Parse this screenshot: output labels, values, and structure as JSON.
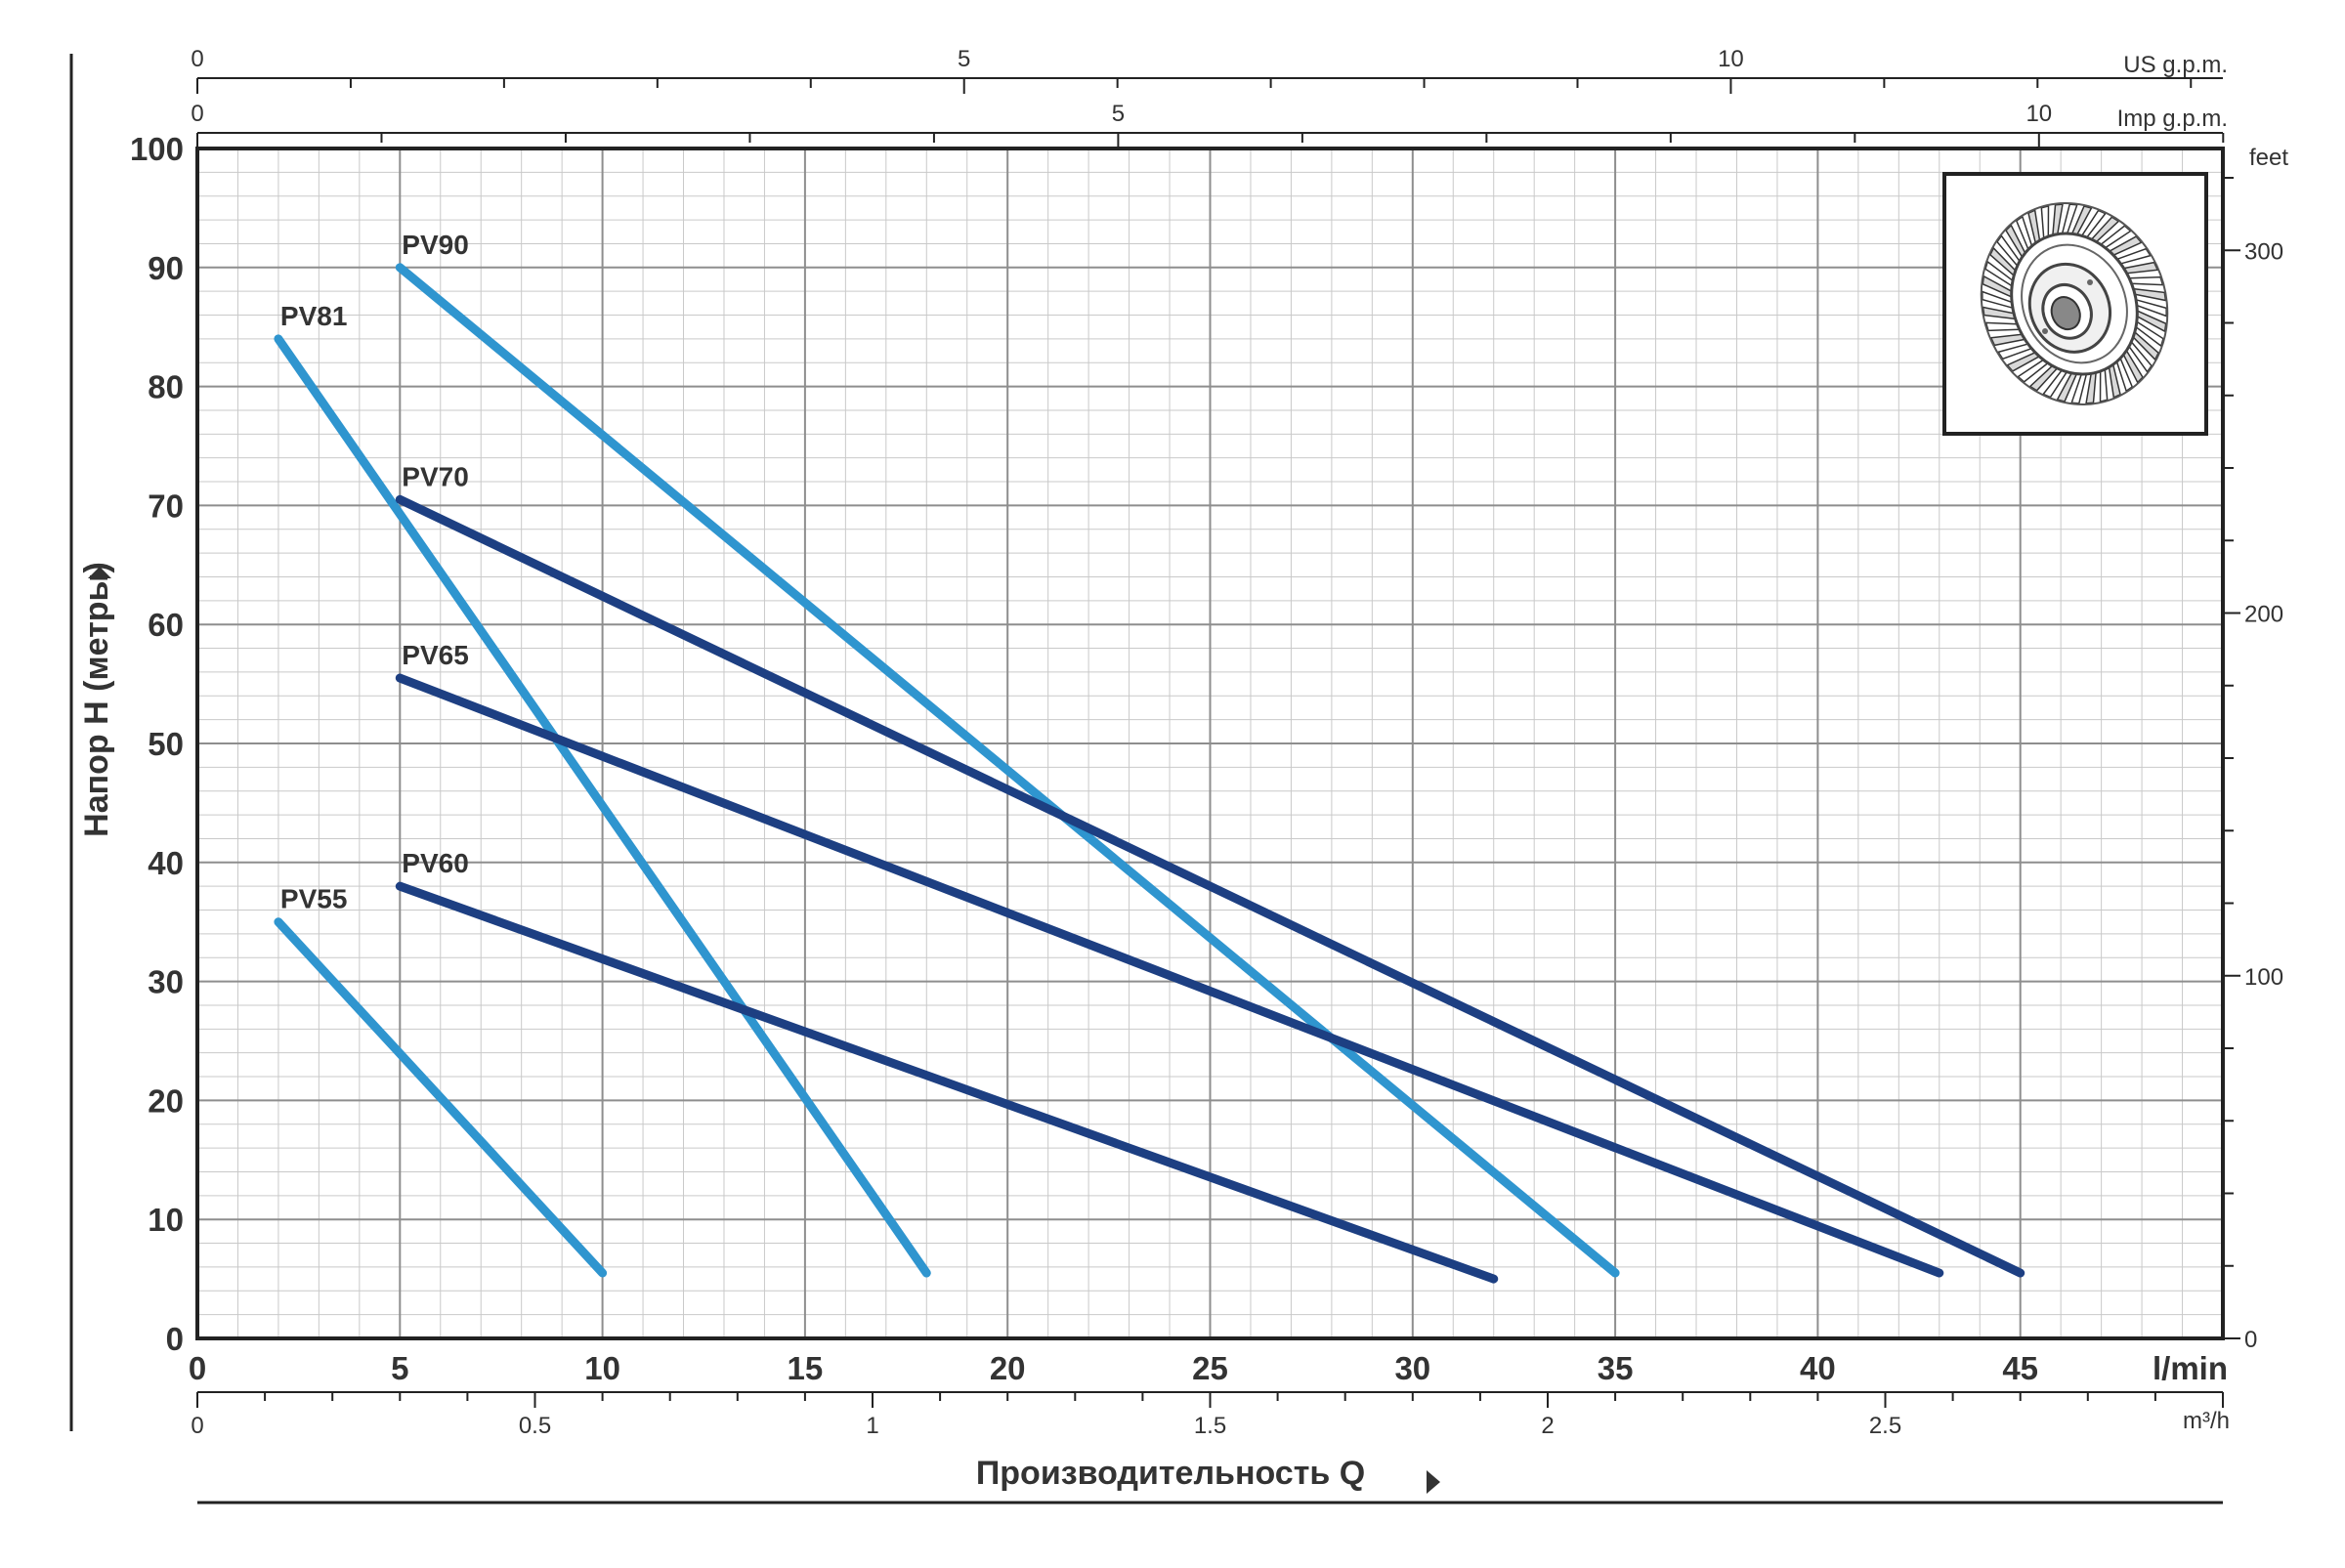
{
  "chart_data": {
    "type": "line",
    "ylabel": "Напор H (метры)",
    "xlabel": "Производительность Q",
    "x_unit_primary": "l/min",
    "x_unit_m3h": "m³/h",
    "x_unit_us": "US g.p.m.",
    "x_unit_imp": "Imp g.p.m.",
    "y_unit_feet": "feet",
    "xlim": [
      0,
      50
    ],
    "ylim": [
      0,
      100
    ],
    "x_ticks": [
      0,
      5,
      10,
      15,
      20,
      25,
      30,
      35,
      40,
      45
    ],
    "y_ticks": [
      0,
      10,
      20,
      30,
      40,
      50,
      60,
      70,
      80,
      90,
      100
    ],
    "m3h_ticks": [
      {
        "value": 0,
        "label": "0"
      },
      {
        "value": 0.5,
        "label": "0.5"
      },
      {
        "value": 1,
        "label": "1"
      },
      {
        "value": 1.5,
        "label": "1.5"
      },
      {
        "value": 2,
        "label": "2"
      },
      {
        "value": 2.5,
        "label": "2.5"
      }
    ],
    "us_gpm_ticks": [
      {
        "value": 0,
        "label": "0"
      },
      {
        "value": 5,
        "label": "5"
      },
      {
        "value": 10,
        "label": "10"
      }
    ],
    "imp_gpm_ticks": [
      {
        "value": 0,
        "label": "0"
      },
      {
        "value": 5,
        "label": "5"
      },
      {
        "value": 10,
        "label": "10"
      }
    ],
    "feet_ticks": [
      {
        "value": 0,
        "label": "0"
      },
      {
        "value": 100,
        "label": "100"
      },
      {
        "value": 200,
        "label": "200"
      },
      {
        "value": 300,
        "label": "300"
      }
    ],
    "grid": true,
    "series": [
      {
        "name": "PV55",
        "color": "#2f95cf",
        "points": [
          [
            2,
            35
          ],
          [
            10,
            5.5
          ]
        ]
      },
      {
        "name": "PV81",
        "color": "#2f95cf",
        "points": [
          [
            2,
            84
          ],
          [
            18,
            5.5
          ]
        ]
      },
      {
        "name": "PV90",
        "color": "#2f95cf",
        "points": [
          [
            5,
            90
          ],
          [
            35,
            5.5
          ]
        ]
      },
      {
        "name": "PV70",
        "color": "#1d3f82",
        "points": [
          [
            5,
            70.5
          ],
          [
            45,
            5.5
          ]
        ]
      },
      {
        "name": "PV65",
        "color": "#1d3f82",
        "points": [
          [
            5,
            55.5
          ],
          [
            43,
            5.5
          ]
        ]
      },
      {
        "name": "PV60",
        "color": "#1d3f82",
        "points": [
          [
            5,
            38
          ],
          [
            32,
            5
          ]
        ]
      }
    ]
  },
  "inset": {
    "icon": "impeller-icon"
  }
}
